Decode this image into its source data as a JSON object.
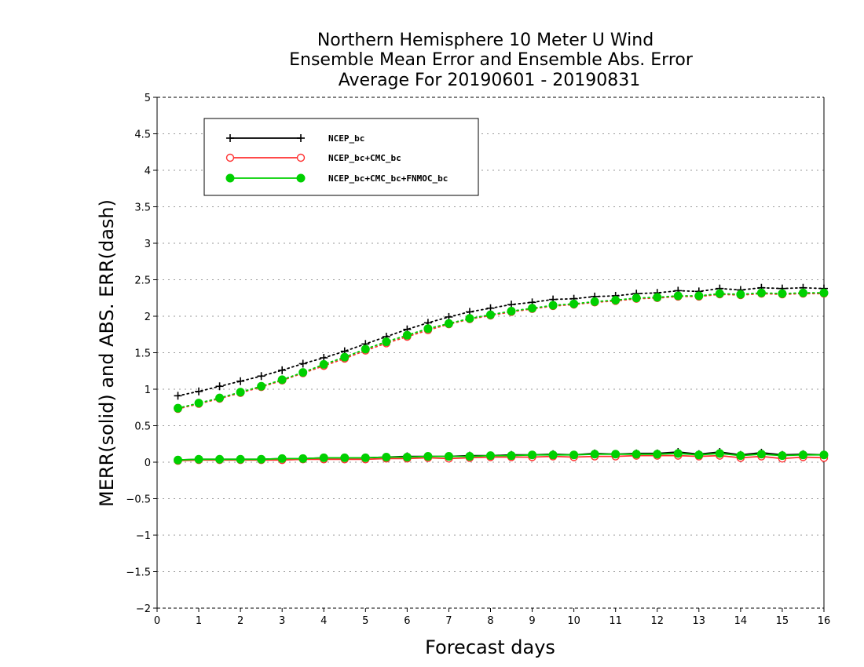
{
  "chart_data": {
    "type": "line",
    "title": [
      "Northern Hemisphere 10 Meter U Wind",
      "Ensemble Mean Error and Ensemble Abs. Error",
      "Average For 20190601 - 20190831"
    ],
    "xlabel": "Forecast days",
    "ylabel": "MERR(solid) and ABS. ERR(dash)",
    "xlim": [
      0,
      16
    ],
    "ylim": [
      -2,
      5
    ],
    "xticks": [
      0,
      1,
      2,
      3,
      4,
      5,
      6,
      7,
      8,
      9,
      10,
      11,
      12,
      13,
      14,
      15,
      16
    ],
    "yticks": [
      -2,
      -1.5,
      -1,
      -0.5,
      0,
      0.5,
      1,
      1.5,
      2,
      2.5,
      3,
      3.5,
      4,
      4.5,
      5
    ],
    "grid": true,
    "legend_position": "top-left",
    "x": [
      0.5,
      1,
      1.5,
      2,
      2.5,
      3,
      3.5,
      4,
      4.5,
      5,
      5.5,
      6,
      6.5,
      7,
      7.5,
      8,
      8.5,
      9,
      9.5,
      10,
      10.5,
      11,
      11.5,
      12,
      12.5,
      13,
      13.5,
      14,
      14.5,
      15,
      15.5,
      16
    ],
    "series": [
      {
        "name": "NCEP_bc",
        "color": "#000000",
        "marker": "plus",
        "merr": [
          0.03,
          0.04,
          0.04,
          0.04,
          0.04,
          0.05,
          0.05,
          0.06,
          0.06,
          0.06,
          0.07,
          0.08,
          0.08,
          0.08,
          0.09,
          0.09,
          0.1,
          0.1,
          0.11,
          0.1,
          0.12,
          0.11,
          0.12,
          0.12,
          0.14,
          0.11,
          0.14,
          0.1,
          0.13,
          0.1,
          0.11,
          0.1
        ],
        "abs_err": [
          0.91,
          0.97,
          1.04,
          1.11,
          1.18,
          1.26,
          1.35,
          1.43,
          1.52,
          1.62,
          1.72,
          1.82,
          1.91,
          1.99,
          2.06,
          2.11,
          2.16,
          2.19,
          2.23,
          2.24,
          2.27,
          2.28,
          2.31,
          2.32,
          2.35,
          2.34,
          2.38,
          2.36,
          2.39,
          2.38,
          2.39,
          2.38
        ]
      },
      {
        "name": "NCEP_bc+CMC_bc",
        "color": "#ff3030",
        "marker": "open-circle",
        "merr": [
          0.02,
          0.03,
          0.03,
          0.03,
          0.03,
          0.03,
          0.04,
          0.04,
          0.04,
          0.04,
          0.05,
          0.05,
          0.06,
          0.05,
          0.06,
          0.07,
          0.07,
          0.07,
          0.08,
          0.07,
          0.08,
          0.08,
          0.09,
          0.09,
          0.09,
          0.08,
          0.09,
          0.06,
          0.08,
          0.05,
          0.07,
          0.06
        ],
        "abs_err": [
          0.73,
          0.8,
          0.87,
          0.95,
          1.03,
          1.12,
          1.22,
          1.32,
          1.42,
          1.53,
          1.63,
          1.72,
          1.81,
          1.89,
          1.96,
          2.01,
          2.06,
          2.1,
          2.14,
          2.16,
          2.19,
          2.21,
          2.24,
          2.25,
          2.27,
          2.27,
          2.3,
          2.29,
          2.31,
          2.3,
          2.31,
          2.31
        ]
      },
      {
        "name": "NCEP_bc+CMC_bc+FNMOC_bc",
        "color": "#00d000",
        "marker": "filled-circle",
        "merr": [
          0.03,
          0.04,
          0.04,
          0.04,
          0.04,
          0.05,
          0.05,
          0.06,
          0.06,
          0.06,
          0.07,
          0.07,
          0.08,
          0.08,
          0.08,
          0.09,
          0.09,
          0.1,
          0.1,
          0.1,
          0.11,
          0.11,
          0.11,
          0.11,
          0.12,
          0.1,
          0.12,
          0.09,
          0.11,
          0.09,
          0.1,
          0.1
        ],
        "abs_err": [
          0.74,
          0.81,
          0.88,
          0.96,
          1.04,
          1.13,
          1.23,
          1.34,
          1.44,
          1.55,
          1.65,
          1.74,
          1.83,
          1.9,
          1.97,
          2.02,
          2.07,
          2.11,
          2.15,
          2.17,
          2.2,
          2.22,
          2.25,
          2.26,
          2.28,
          2.28,
          2.31,
          2.3,
          2.32,
          2.31,
          2.32,
          2.32
        ]
      }
    ]
  }
}
